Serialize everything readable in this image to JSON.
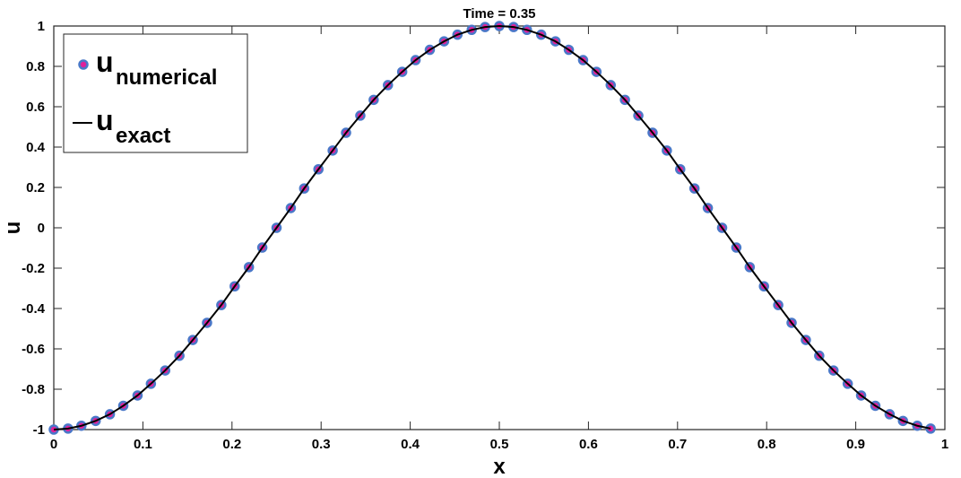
{
  "chart_data": {
    "type": "line",
    "title": "Time = 0.35",
    "xlabel": "x",
    "ylabel": "u",
    "x": [
      0,
      0.016,
      0.031,
      0.047,
      0.063,
      0.078,
      0.094,
      0.109,
      0.125,
      0.141,
      0.156,
      0.172,
      0.188,
      0.203,
      0.219,
      0.234,
      0.25,
      0.266,
      0.281,
      0.297,
      0.313,
      0.328,
      0.344,
      0.359,
      0.375,
      0.391,
      0.406,
      0.422,
      0.438,
      0.453,
      0.469,
      0.484,
      0.5,
      0.516,
      0.531,
      0.547,
      0.563,
      0.578,
      0.594,
      0.609,
      0.625,
      0.641,
      0.656,
      0.672,
      0.688,
      0.703,
      0.719,
      0.734,
      0.75,
      0.766,
      0.781,
      0.797,
      0.813,
      0.828,
      0.844,
      0.859,
      0.875,
      0.891,
      0.906,
      0.922,
      0.938,
      0.953,
      0.969,
      0.984
    ],
    "series": [
      {
        "name": "u",
        "name_subscript": "numerical",
        "mode": "markers",
        "color": "#e0219a",
        "edge_color": "#4a78c8",
        "values": [
          -1,
          -0.995,
          -0.981,
          -0.957,
          -0.924,
          -0.882,
          -0.831,
          -0.773,
          -0.707,
          -0.634,
          -0.556,
          -0.471,
          -0.383,
          -0.29,
          -0.195,
          -0.098,
          0,
          0.098,
          0.195,
          0.29,
          0.383,
          0.471,
          0.556,
          0.634,
          0.707,
          0.773,
          0.831,
          0.882,
          0.924,
          0.957,
          0.981,
          0.995,
          1,
          0.995,
          0.981,
          0.957,
          0.924,
          0.882,
          0.831,
          0.773,
          0.707,
          0.634,
          0.556,
          0.471,
          0.383,
          0.29,
          0.195,
          0.098,
          0,
          -0.098,
          -0.195,
          -0.29,
          -0.383,
          -0.471,
          -0.556,
          -0.634,
          -0.707,
          -0.773,
          -0.831,
          -0.882,
          -0.924,
          -0.957,
          -0.981,
          -0.995
        ]
      },
      {
        "name": "u",
        "name_subscript": "exact",
        "mode": "line",
        "color": "#000000",
        "values": [
          -1,
          -0.995,
          -0.981,
          -0.957,
          -0.924,
          -0.882,
          -0.831,
          -0.773,
          -0.707,
          -0.634,
          -0.556,
          -0.471,
          -0.383,
          -0.29,
          -0.195,
          -0.098,
          0,
          0.098,
          0.195,
          0.29,
          0.383,
          0.471,
          0.556,
          0.634,
          0.707,
          0.773,
          0.831,
          0.882,
          0.924,
          0.957,
          0.981,
          0.995,
          1,
          0.995,
          0.981,
          0.957,
          0.924,
          0.882,
          0.831,
          0.773,
          0.707,
          0.634,
          0.556,
          0.471,
          0.383,
          0.29,
          0.195,
          0.098,
          0,
          -0.098,
          -0.195,
          -0.29,
          -0.383,
          -0.471,
          -0.556,
          -0.634,
          -0.707,
          -0.773,
          -0.831,
          -0.882,
          -0.924,
          -0.957,
          -0.981,
          -0.995
        ]
      }
    ],
    "xlim": [
      0,
      1
    ],
    "xticks": [
      0,
      0.1,
      0.2,
      0.3,
      0.4,
      0.5,
      0.6,
      0.7,
      0.8,
      0.9,
      1
    ],
    "ylim": [
      -1,
      1
    ],
    "yticks": [
      -1,
      -0.8,
      -0.6,
      -0.4,
      -0.2,
      0,
      0.2,
      0.4,
      0.6,
      0.8,
      1
    ],
    "grid": false,
    "legend": "upper-left"
  }
}
